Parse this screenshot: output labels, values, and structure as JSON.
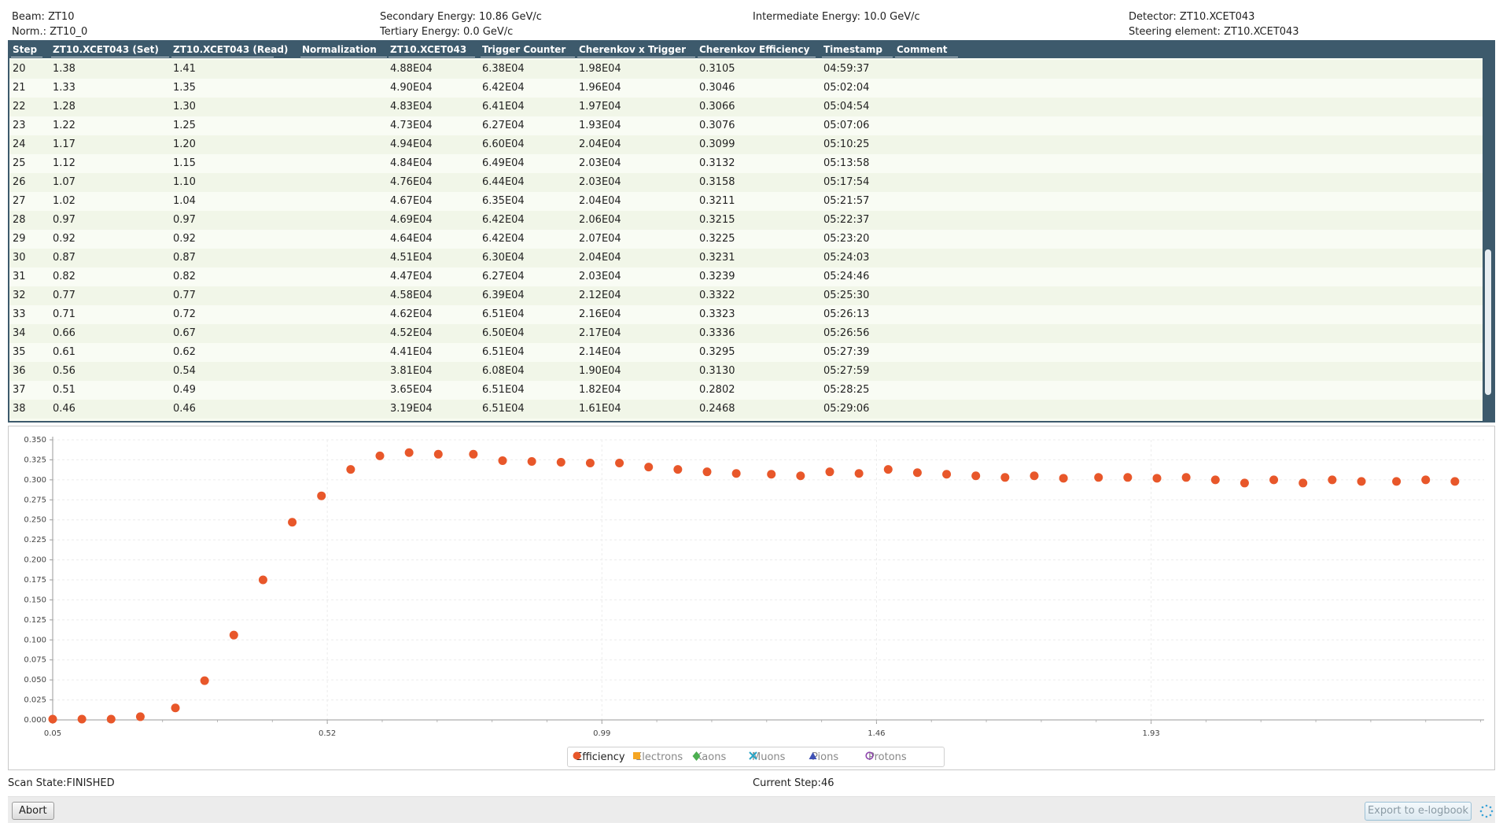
{
  "header": {
    "beam_label": "Beam:",
    "beam_value": "ZT10",
    "norm_label": "Norm.:",
    "norm_value": "ZT10_0",
    "secondary_energy": "Secondary Energy: 10.86 GeV/c",
    "tertiary_energy": "Tertiary Energy: 0.0 GeV/c",
    "intermediate_energy": "Intermediate Energy: 10.0 GeV/c",
    "detector": "Detector:  ZT10.XCET043",
    "steering": "Steering element: ZT10.XCET043"
  },
  "table": {
    "columns": [
      "Step",
      "ZT10.XCET043 (Set)",
      "ZT10.XCET043 (Read)",
      "Normalization",
      "ZT10.XCET043",
      "Trigger Counter",
      "Cherenkov x Trigger",
      "Cherenkov Efficiency",
      "Timestamp",
      "Comment"
    ],
    "rows": [
      [
        "20",
        "1.38",
        "1.41",
        "",
        "4.88E04",
        "6.38E04",
        "1.98E04",
        "0.3105",
        "04:59:37",
        ""
      ],
      [
        "21",
        "1.33",
        "1.35",
        "",
        "4.90E04",
        "6.42E04",
        "1.96E04",
        "0.3046",
        "05:02:04",
        ""
      ],
      [
        "22",
        "1.28",
        "1.30",
        "",
        "4.83E04",
        "6.41E04",
        "1.97E04",
        "0.3066",
        "05:04:54",
        ""
      ],
      [
        "23",
        "1.22",
        "1.25",
        "",
        "4.73E04",
        "6.27E04",
        "1.93E04",
        "0.3076",
        "05:07:06",
        ""
      ],
      [
        "24",
        "1.17",
        "1.20",
        "",
        "4.94E04",
        "6.60E04",
        "2.04E04",
        "0.3099",
        "05:10:25",
        ""
      ],
      [
        "25",
        "1.12",
        "1.15",
        "",
        "4.84E04",
        "6.49E04",
        "2.03E04",
        "0.3132",
        "05:13:58",
        ""
      ],
      [
        "26",
        "1.07",
        "1.10",
        "",
        "4.76E04",
        "6.44E04",
        "2.03E04",
        "0.3158",
        "05:17:54",
        ""
      ],
      [
        "27",
        "1.02",
        "1.04",
        "",
        "4.67E04",
        "6.35E04",
        "2.04E04",
        "0.3211",
        "05:21:57",
        ""
      ],
      [
        "28",
        "0.97",
        "0.97",
        "",
        "4.69E04",
        "6.42E04",
        "2.06E04",
        "0.3215",
        "05:22:37",
        ""
      ],
      [
        "29",
        "0.92",
        "0.92",
        "",
        "4.64E04",
        "6.42E04",
        "2.07E04",
        "0.3225",
        "05:23:20",
        ""
      ],
      [
        "30",
        "0.87",
        "0.87",
        "",
        "4.51E04",
        "6.30E04",
        "2.04E04",
        "0.3231",
        "05:24:03",
        ""
      ],
      [
        "31",
        "0.82",
        "0.82",
        "",
        "4.47E04",
        "6.27E04",
        "2.03E04",
        "0.3239",
        "05:24:46",
        ""
      ],
      [
        "32",
        "0.77",
        "0.77",
        "",
        "4.58E04",
        "6.39E04",
        "2.12E04",
        "0.3322",
        "05:25:30",
        ""
      ],
      [
        "33",
        "0.71",
        "0.72",
        "",
        "4.62E04",
        "6.51E04",
        "2.16E04",
        "0.3323",
        "05:26:13",
        ""
      ],
      [
        "34",
        "0.66",
        "0.67",
        "",
        "4.52E04",
        "6.50E04",
        "2.17E04",
        "0.3336",
        "05:26:56",
        ""
      ],
      [
        "35",
        "0.61",
        "0.62",
        "",
        "4.41E04",
        "6.51E04",
        "2.14E04",
        "0.3295",
        "05:27:39",
        ""
      ],
      [
        "36",
        "0.56",
        "0.54",
        "",
        "3.81E04",
        "6.08E04",
        "1.90E04",
        "0.3130",
        "05:27:59",
        ""
      ],
      [
        "37",
        "0.51",
        "0.49",
        "",
        "3.65E04",
        "6.51E04",
        "1.82E04",
        "0.2802",
        "05:28:25",
        ""
      ],
      [
        "38",
        "0.46",
        "0.46",
        "",
        "3.19E04",
        "6.51E04",
        "1.61E04",
        "0.2468",
        "05:29:06",
        ""
      ]
    ]
  },
  "chart_data": {
    "type": "scatter",
    "title": "",
    "xlabel": "",
    "ylabel": "",
    "xlim": [
      0.05,
      2.5
    ],
    "ylim": [
      0.0,
      0.35
    ],
    "x_ticks": [
      "0.05",
      "0.52",
      "0.99",
      "1.46",
      "1.93"
    ],
    "y_ticks": [
      "0.000",
      "0.025",
      "0.050",
      "0.075",
      "0.100",
      "0.125",
      "0.150",
      "0.175",
      "0.200",
      "0.225",
      "0.250",
      "0.275",
      "0.300",
      "0.325",
      "0.350"
    ],
    "grid": true,
    "series": [
      {
        "name": "Efficiency",
        "color": "#e8572a",
        "x": [
          0.05,
          0.1,
          0.15,
          0.2,
          0.26,
          0.31,
          0.36,
          0.41,
          0.46,
          0.51,
          0.56,
          0.61,
          0.66,
          0.71,
          0.77,
          0.82,
          0.87,
          0.92,
          0.97,
          1.02,
          1.07,
          1.12,
          1.17,
          1.22,
          1.28,
          1.33,
          1.38,
          1.43,
          1.48,
          1.53,
          1.58,
          1.63,
          1.68,
          1.73,
          1.78,
          1.84,
          1.89,
          1.94,
          1.99,
          2.04,
          2.09,
          2.14,
          2.19,
          2.24,
          2.29,
          2.35,
          2.4,
          2.45
        ],
        "y": [
          0.001,
          0.001,
          0.001,
          0.004,
          0.015,
          0.049,
          0.106,
          0.175,
          0.247,
          0.28,
          0.313,
          0.33,
          0.334,
          0.332,
          0.332,
          0.324,
          0.323,
          0.322,
          0.321,
          0.321,
          0.316,
          0.313,
          0.31,
          0.308,
          0.307,
          0.305,
          0.31,
          0.308,
          0.313,
          0.309,
          0.307,
          0.305,
          0.303,
          0.305,
          0.302,
          0.303,
          0.303,
          0.302,
          0.303,
          0.3,
          0.296,
          0.3,
          0.296,
          0.3,
          0.298,
          0.298,
          0.3,
          0.298
        ]
      }
    ],
    "legend": [
      "Efficiency",
      "Electrons",
      "Kaons",
      "Muons",
      "Pions",
      "Protons"
    ],
    "legend_colors": [
      "#e8572a",
      "#f5a623",
      "#4caf50",
      "#26a6c8",
      "#3f51b5",
      "#8e44ad"
    ],
    "legend_position": "bottom-center"
  },
  "status": {
    "scan_state": "Scan State:FINISHED",
    "current_step": "Current Step:46"
  },
  "buttons": {
    "abort": "Abort",
    "export": "Export to e-logbook"
  }
}
